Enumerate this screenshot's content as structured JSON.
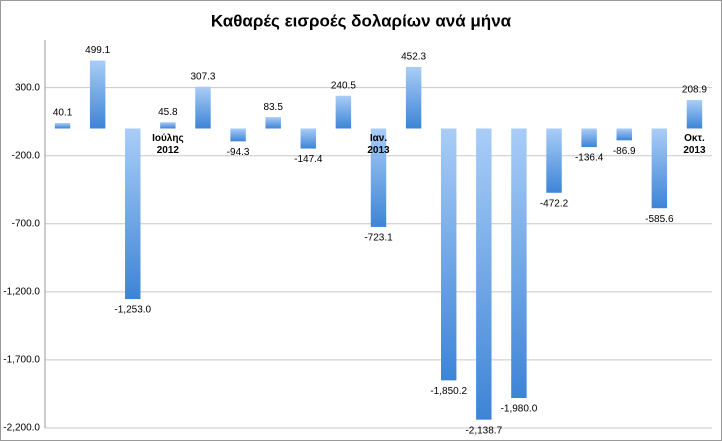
{
  "chart_data": {
    "type": "bar",
    "title": "Καθαρές εισροές δολαρίων ανά μήνα",
    "categories": [
      null,
      null,
      null,
      "Ιούλης\n2012",
      null,
      null,
      null,
      null,
      null,
      "Ιαν.\n2013",
      null,
      null,
      null,
      null,
      null,
      null,
      null,
      null,
      "Οκτ.\n2013"
    ],
    "values": [
      40.1,
      499.1,
      -1253.0,
      45.8,
      307.3,
      -94.3,
      83.5,
      -147.4,
      240.5,
      -723.1,
      452.3,
      -1850.2,
      -2138.7,
      -1980.0,
      -472.2,
      -136.4,
      -86.9,
      -585.6,
      208.9
    ],
    "value_labels": [
      "40.1",
      "499.1",
      "-1,253.0",
      "45.8",
      "307.3",
      "-94.3",
      "83.5",
      "-147.4",
      "240.5",
      "-723.1",
      "452.3",
      "-1,850.2",
      "-2,138.7",
      "-1,980.0",
      "-472.2",
      "-136.4",
      "-86.9",
      "-585.6",
      "208.9"
    ],
    "ylim": [
      -2200,
      650
    ],
    "yticks": [
      {
        "value": 300,
        "label": "300.0"
      },
      {
        "value": -200,
        "label": "-200.0"
      },
      {
        "value": -700,
        "label": "-700.0"
      },
      {
        "value": -1200,
        "label": "-1,200.0"
      },
      {
        "value": -1700,
        "label": "-1,700.0"
      },
      {
        "value": -2200,
        "label": "-2,200.0"
      }
    ],
    "grid": true
  }
}
